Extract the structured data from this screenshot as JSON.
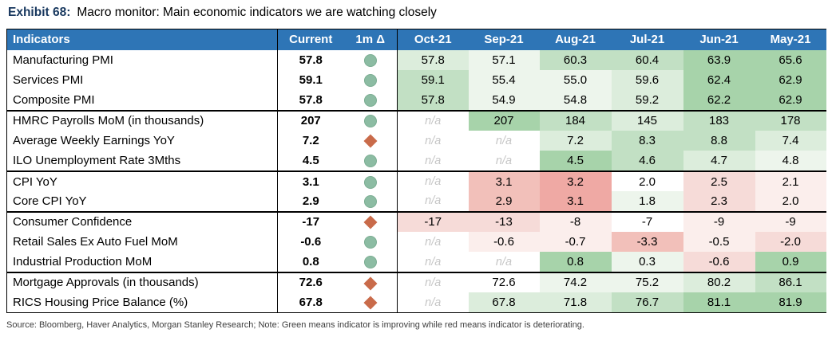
{
  "title": {
    "exhibit": "Exhibit 68:",
    "text": "Macro monitor: Main economic indicators we are watching closely"
  },
  "footer": "Source: Bloomberg, Haver Analytics, Morgan Stanley Research; Note: Green means indicator is improving while red means indicator is deteriorating.",
  "colors": {
    "header_bg": "#2E75B6",
    "header_text": "#FFFFFF",
    "improving_circle": "#8CBCA3",
    "improving_circle_border": "#7BAD92",
    "deteriorating_diamond": "#C96B4A",
    "na_text": "#C6C6C6",
    "shades": {
      "W": "#FFFFFF",
      "G1": "#EDF5EC",
      "G2": "#DCEDDC",
      "G3": "#C2E0C4",
      "G4": "#A7D3AA",
      "R1": "#FBEEEC",
      "R2": "#F6DBD8",
      "R3": "#F2C0BA",
      "R4": "#EFA9A4"
    }
  },
  "chart_data": {
    "type": "table",
    "title": "Macro monitor: Main economic indicators we are watching closely",
    "columns": [
      "Indicators",
      "Current",
      "1m Δ",
      "Oct-21",
      "Sep-21",
      "Aug-21",
      "Jul-21",
      "Jun-21",
      "May-21"
    ],
    "legend": {
      "circle": "improving",
      "diamond": "deteriorating"
    },
    "rows": [
      {
        "indicator": "Manufacturing PMI",
        "current": "57.8",
        "delta": "improving",
        "values": [
          "57.8",
          "57.1",
          "60.3",
          "60.4",
          "63.9",
          "65.6"
        ],
        "shades": [
          "G2",
          "G1",
          "G3",
          "G3",
          "G4",
          "G4"
        ],
        "group_end": false
      },
      {
        "indicator": "Services PMI",
        "current": "59.1",
        "delta": "improving",
        "values": [
          "59.1",
          "55.4",
          "55.0",
          "59.6",
          "62.4",
          "62.9"
        ],
        "shades": [
          "G3",
          "G1",
          "G1",
          "G2",
          "G4",
          "G4"
        ],
        "group_end": false
      },
      {
        "indicator": "Composite PMI",
        "current": "57.8",
        "delta": "improving",
        "values": [
          "57.8",
          "54.9",
          "54.8",
          "59.2",
          "62.2",
          "62.9"
        ],
        "shades": [
          "G3",
          "G1",
          "G1",
          "G2",
          "G4",
          "G4"
        ],
        "group_end": true
      },
      {
        "indicator": "HMRC Payrolls MoM (in thousands)",
        "current": "207",
        "delta": "improving",
        "values": [
          "n/a",
          "207",
          "184",
          "145",
          "183",
          "178"
        ],
        "shades": [
          "W",
          "G4",
          "G3",
          "G2",
          "G3",
          "G3"
        ],
        "group_end": false
      },
      {
        "indicator": "Average Weekly Earnings YoY",
        "current": "7.2",
        "delta": "deteriorating",
        "values": [
          "n/a",
          "n/a",
          "7.2",
          "8.3",
          "8.8",
          "7.4"
        ],
        "shades": [
          "W",
          "W",
          "G2",
          "G3",
          "G3",
          "G2"
        ],
        "group_end": false
      },
      {
        "indicator": "ILO Unemployment Rate 3Mths",
        "current": "4.5",
        "delta": "improving",
        "values": [
          "n/a",
          "n/a",
          "4.5",
          "4.6",
          "4.7",
          "4.8"
        ],
        "shades": [
          "W",
          "W",
          "G4",
          "G3",
          "G2",
          "G1"
        ],
        "group_end": true
      },
      {
        "indicator": "CPI YoY",
        "current": "3.1",
        "delta": "improving",
        "values": [
          "n/a",
          "3.1",
          "3.2",
          "2.0",
          "2.5",
          "2.1"
        ],
        "shades": [
          "W",
          "R3",
          "R4",
          "W",
          "R2",
          "R1"
        ],
        "group_end": false
      },
      {
        "indicator": "Core CPI YoY",
        "current": "2.9",
        "delta": "improving",
        "values": [
          "n/a",
          "2.9",
          "3.1",
          "1.8",
          "2.3",
          "2.0"
        ],
        "shades": [
          "W",
          "R3",
          "R4",
          "G1",
          "R2",
          "R1"
        ],
        "group_end": true
      },
      {
        "indicator": "Consumer Confidence",
        "current": "-17",
        "delta": "deteriorating",
        "values": [
          "-17",
          "-13",
          "-8",
          "-7",
          "-9",
          "-9"
        ],
        "shades": [
          "R2",
          "R2",
          "R1",
          "W",
          "R1",
          "R1"
        ],
        "group_end": false
      },
      {
        "indicator": "Retail Sales Ex Auto Fuel MoM",
        "current": "-0.6",
        "delta": "improving",
        "values": [
          "n/a",
          "-0.6",
          "-0.7",
          "-3.3",
          "-0.5",
          "-2.0"
        ],
        "shades": [
          "W",
          "R1",
          "R1",
          "R3",
          "R1",
          "R2"
        ],
        "group_end": false
      },
      {
        "indicator": "Industrial Production MoM",
        "current": "0.8",
        "delta": "improving",
        "values": [
          "n/a",
          "n/a",
          "0.8",
          "0.3",
          "-0.6",
          "0.9"
        ],
        "shades": [
          "W",
          "W",
          "G4",
          "G1",
          "R2",
          "G4"
        ],
        "group_end": true
      },
      {
        "indicator": "Mortgage Approvals (in thousands)",
        "current": "72.6",
        "delta": "deteriorating",
        "values": [
          "n/a",
          "72.6",
          "74.2",
          "75.2",
          "80.2",
          "86.1"
        ],
        "shades": [
          "W",
          "W",
          "G1",
          "G1",
          "G2",
          "G3"
        ],
        "group_end": false
      },
      {
        "indicator": "RICS Housing Price Balance (%)",
        "current": "67.8",
        "delta": "deteriorating",
        "values": [
          "n/a",
          "67.8",
          "71.8",
          "76.7",
          "81.1",
          "81.9"
        ],
        "shades": [
          "W",
          "G2",
          "G2",
          "G3",
          "G4",
          "G4"
        ],
        "group_end": false
      }
    ]
  }
}
